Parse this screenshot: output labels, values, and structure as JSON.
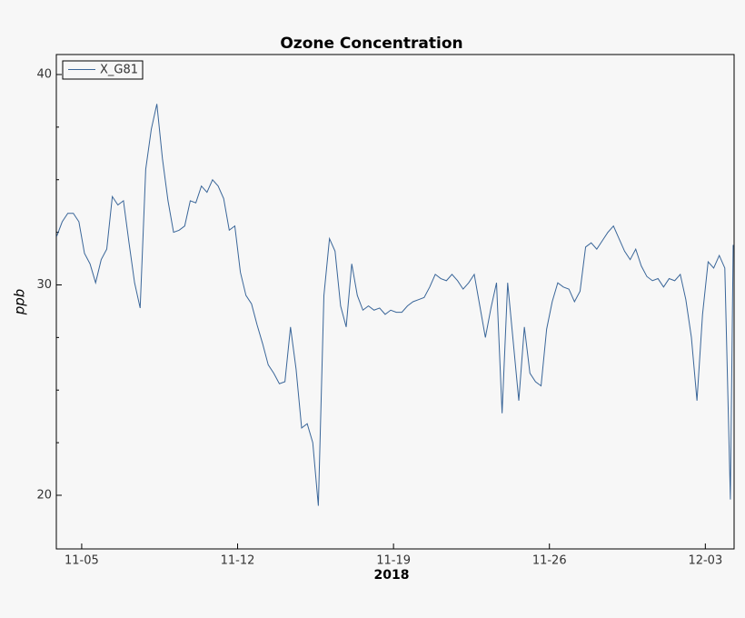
{
  "chart_data": {
    "type": "line",
    "title": "Ozone Concentration",
    "ylabel": "ppb",
    "xlabel": "2018",
    "xlim": [
      "2018-11-03T20:40",
      "2018-12-04T07:00"
    ],
    "xticks": [
      {
        "value": "2018-11-05T00:00",
        "label": "11-05"
      },
      {
        "value": "2018-11-12T00:00",
        "label": "11-12"
      },
      {
        "value": "2018-11-19T00:00",
        "label": "11-19"
      },
      {
        "value": "2018-11-26T00:00",
        "label": "11-26"
      },
      {
        "value": "2018-12-03T00:00",
        "label": "12-03"
      }
    ],
    "ylim": [
      17.45,
      40.95
    ],
    "yticks": [
      20,
      30,
      40
    ],
    "yminorticks": [
      22.5,
      25,
      27.5,
      32.5,
      35,
      37.5
    ],
    "legend": "upper left",
    "x": [
      "2018-11-03T21:00",
      "2018-11-04T03:00",
      "2018-11-04T09:00",
      "2018-11-04T15:00",
      "2018-11-04T21:00",
      "2018-11-05T03:00",
      "2018-11-05T09:00",
      "2018-11-05T15:00",
      "2018-11-05T21:00",
      "2018-11-06T03:00",
      "2018-11-06T09:00",
      "2018-11-06T15:00",
      "2018-11-06T21:00",
      "2018-11-07T03:00",
      "2018-11-07T09:00",
      "2018-11-07T15:00",
      "2018-11-07T21:00",
      "2018-11-08T03:00",
      "2018-11-08T09:00",
      "2018-11-08T15:00",
      "2018-11-08T21:00",
      "2018-11-09T03:00",
      "2018-11-09T09:00",
      "2018-11-09T15:00",
      "2018-11-09T21:00",
      "2018-11-10T03:00",
      "2018-11-10T09:00",
      "2018-11-10T15:00",
      "2018-11-10T21:00",
      "2018-11-11T03:00",
      "2018-11-11T09:00",
      "2018-11-11T15:00",
      "2018-11-11T21:00",
      "2018-11-12T03:00",
      "2018-11-12T09:00",
      "2018-11-12T15:00",
      "2018-11-12T21:00",
      "2018-11-13T03:00",
      "2018-11-13T09:00",
      "2018-11-13T15:00",
      "2018-11-13T21:00",
      "2018-11-14T03:00",
      "2018-11-14T09:00",
      "2018-11-14T15:00",
      "2018-11-14T21:00",
      "2018-11-15T03:00",
      "2018-11-15T09:00",
      "2018-11-15T15:00",
      "2018-11-15T21:00",
      "2018-11-16T03:00",
      "2018-11-16T09:00",
      "2018-11-16T15:00",
      "2018-11-16T21:00",
      "2018-11-17T03:00",
      "2018-11-17T09:00",
      "2018-11-17T15:00",
      "2018-11-17T21:00",
      "2018-11-18T03:00",
      "2018-11-18T09:00",
      "2018-11-18T15:00",
      "2018-11-18T21:00",
      "2018-11-19T03:00",
      "2018-11-19T09:00",
      "2018-11-19T15:00",
      "2018-11-19T21:00",
      "2018-11-20T03:00",
      "2018-11-20T09:00",
      "2018-11-20T15:00",
      "2018-11-20T21:00",
      "2018-11-21T03:00",
      "2018-11-21T09:00",
      "2018-11-21T15:00",
      "2018-11-21T21:00",
      "2018-11-22T03:00",
      "2018-11-22T09:00",
      "2018-11-22T15:00",
      "2018-11-22T21:00",
      "2018-11-23T03:00",
      "2018-11-23T09:00",
      "2018-11-23T15:00",
      "2018-11-23T21:00",
      "2018-11-24T03:00",
      "2018-11-24T09:00",
      "2018-11-24T15:00",
      "2018-11-24T21:00",
      "2018-11-25T03:00",
      "2018-11-25T09:00",
      "2018-11-25T15:00",
      "2018-11-25T21:00",
      "2018-11-26T03:00",
      "2018-11-26T09:00",
      "2018-11-26T15:00",
      "2018-11-26T21:00",
      "2018-11-27T03:00",
      "2018-11-27T09:00",
      "2018-11-27T15:00",
      "2018-11-27T21:00",
      "2018-11-28T03:00",
      "2018-11-28T09:00",
      "2018-11-28T15:00",
      "2018-11-28T21:00",
      "2018-11-29T03:00",
      "2018-11-29T09:00",
      "2018-11-29T15:00",
      "2018-11-29T21:00",
      "2018-11-30T03:00",
      "2018-11-30T09:00",
      "2018-11-30T15:00",
      "2018-11-30T21:00",
      "2018-12-01T03:00",
      "2018-12-01T09:00",
      "2018-12-01T15:00",
      "2018-12-01T21:00",
      "2018-12-02T03:00",
      "2018-12-02T09:00",
      "2018-12-02T15:00",
      "2018-12-02T21:00",
      "2018-12-03T03:00",
      "2018-12-03T09:00",
      "2018-12-03T15:00",
      "2018-12-03T21:00",
      "2018-12-04T03:00",
      "2018-12-04T06:00"
    ],
    "series": [
      {
        "name": "X_G81",
        "color": "#3a6699",
        "values": [
          32.3,
          33.0,
          33.4,
          33.4,
          33.0,
          31.5,
          31.0,
          30.1,
          31.2,
          31.7,
          34.2,
          33.8,
          34.0,
          32.0,
          30.1,
          28.9,
          35.5,
          37.4,
          38.6,
          36.0,
          34.0,
          32.5,
          32.6,
          32.8,
          34.0,
          33.9,
          34.7,
          34.4,
          35.0,
          34.7,
          34.1,
          32.6,
          32.8,
          30.6,
          29.5,
          29.1,
          28.1,
          27.2,
          26.2,
          25.8,
          25.3,
          25.4,
          28.0,
          26.0,
          23.2,
          23.4,
          22.5,
          19.5,
          29.5,
          32.2,
          31.6,
          29.0,
          28.0,
          31.0,
          29.5,
          28.8,
          29.0,
          28.8,
          28.9,
          28.6,
          28.8,
          28.7,
          28.7,
          29.0,
          29.2,
          29.3,
          29.4,
          29.9,
          30.5,
          30.3,
          30.2,
          30.5,
          30.2,
          29.8,
          30.1,
          30.5,
          29.0,
          27.5,
          28.9,
          30.1,
          23.9,
          30.1,
          27.3,
          24.5,
          28.0,
          25.8,
          25.4,
          25.2,
          27.9,
          29.2,
          30.1,
          29.9,
          29.8,
          29.2,
          29.7,
          31.8,
          32.0,
          31.7,
          32.1,
          32.5,
          32.8,
          32.2,
          31.6,
          31.2,
          31.7,
          30.9,
          30.4,
          30.2,
          30.3,
          29.9,
          30.3,
          30.2,
          30.5,
          29.3,
          27.5,
          24.5,
          28.6,
          31.1,
          30.8,
          31.4,
          30.8,
          19.8,
          31.9
        ]
      }
    ]
  }
}
